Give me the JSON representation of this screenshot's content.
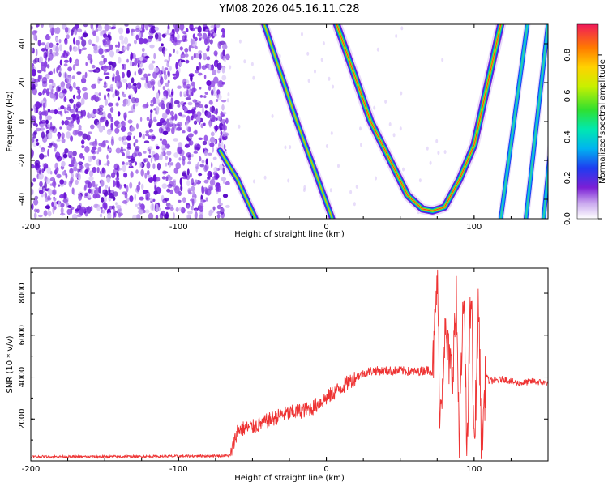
{
  "title": "YM08.2026.045.16.11.C28",
  "chart_data": [
    {
      "type": "heatmap",
      "xlabel": "Height of straight line (km)",
      "ylabel": "Frequency (Hz)",
      "xlim": [
        -200,
        150
      ],
      "ylim": [
        -50,
        50
      ],
      "xticks": [
        -200,
        -100,
        0,
        100
      ],
      "yticks": [
        -40,
        -20,
        0,
        20,
        40
      ],
      "noise_region": {
        "x_from": -200,
        "x_to": -70
      },
      "ridges": [
        {
          "name": "ridge-1",
          "points": [
            [
              -72,
              -15
            ],
            [
              -60,
              -30
            ],
            [
              -48,
              -50
            ]
          ]
        },
        {
          "name": "ridge-2",
          "points": [
            [
              -42,
              50
            ],
            [
              -20,
              0
            ],
            [
              4,
              -50
            ]
          ]
        },
        {
          "name": "ridge-3",
          "points": [
            [
              7,
              50
            ],
            [
              30,
              0
            ],
            [
              55,
              -38
            ],
            [
              65,
              -45
            ],
            [
              72,
              -46
            ],
            [
              80,
              -44
            ],
            [
              90,
              -30
            ],
            [
              100,
              -12
            ],
            [
              118,
              50
            ]
          ]
        },
        {
          "name": "ridge-4",
          "points": [
            [
              118,
              -50
            ],
            [
              136,
              50
            ]
          ]
        },
        {
          "name": "ridge-5",
          "points": [
            [
              135,
              -50
            ],
            [
              150,
              50
            ]
          ]
        },
        {
          "name": "ridge-6",
          "points": [
            [
              147,
              -50
            ],
            [
              160,
              50
            ]
          ]
        }
      ],
      "colorbar": {
        "label": "Normalized spectral amplitude",
        "range": [
          0,
          0.95
        ],
        "ticks": [
          "0.0",
          "0.2",
          "0.4",
          "0.6",
          "0.8"
        ]
      }
    },
    {
      "type": "line",
      "xlabel": "Height of straight line (km)",
      "ylabel": "SNR (10 * v/v)",
      "xlim": [
        -200,
        150
      ],
      "ylim": [
        0,
        9200
      ],
      "xticks": [
        -200,
        -100,
        0,
        100
      ],
      "yticks": [
        2000,
        4000,
        6000,
        8000
      ],
      "color": "#ee3333",
      "series": [
        {
          "name": "SNR",
          "x": [
            -200,
            -150,
            -100,
            -65,
            -60,
            -50,
            -30,
            -10,
            0,
            10,
            20,
            30,
            40,
            50,
            60,
            70,
            72,
            75,
            77,
            80,
            85,
            88,
            90,
            93,
            95,
            98,
            100,
            103,
            105,
            108,
            110,
            120,
            130,
            140,
            150
          ],
          "values": [
            200,
            200,
            220,
            250,
            1500,
            1600,
            2200,
            2500,
            3000,
            3500,
            4000,
            4300,
            4300,
            4300,
            4250,
            4350,
            4200,
            8800,
            2000,
            6000,
            4000,
            7500,
            1000,
            8000,
            500,
            8500,
            300,
            7500,
            600,
            4200,
            3800,
            3900,
            3700,
            3800,
            3700
          ]
        }
      ]
    }
  ]
}
